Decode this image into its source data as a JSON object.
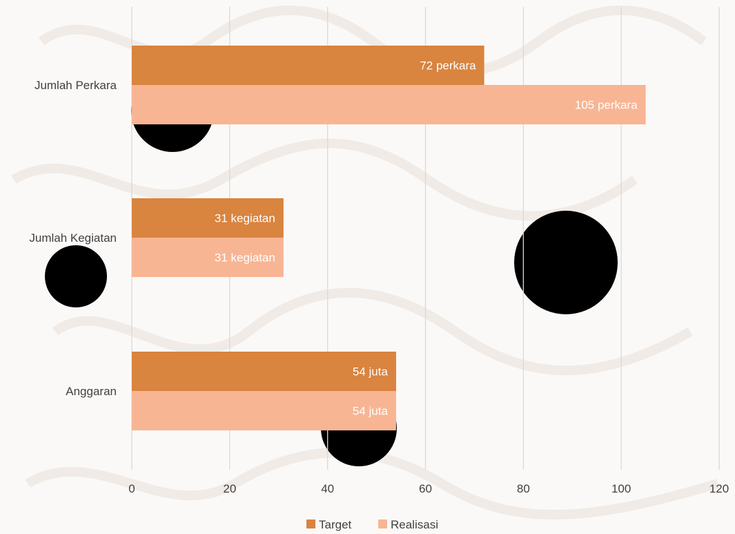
{
  "colors": {
    "target": "#d9843f",
    "realisasi": "#f8b593",
    "grid": "#d9d9d9",
    "text": "#404040",
    "background": "#fbf9f7"
  },
  "chart_data": {
    "type": "bar",
    "orientation": "horizontal",
    "categories": [
      "Jumlah Perkara",
      "Jumlah Kegiatan",
      "Anggaran"
    ],
    "series": [
      {
        "name": "Target",
        "values": [
          72,
          31,
          54
        ],
        "labels": [
          "72 perkara",
          "31 kegiatan",
          "54 juta"
        ]
      },
      {
        "name": "Realisasi",
        "values": [
          105,
          31,
          54
        ],
        "labels": [
          "105 perkara",
          "31 kegiatan",
          "54 juta"
        ]
      }
    ],
    "xlim": [
      0,
      120
    ],
    "xticks": [
      "0",
      "20",
      "40",
      "60",
      "80",
      "100",
      "120"
    ],
    "grid": true,
    "legend_position": "bottom",
    "title": "",
    "xlabel": "",
    "ylabel": ""
  }
}
